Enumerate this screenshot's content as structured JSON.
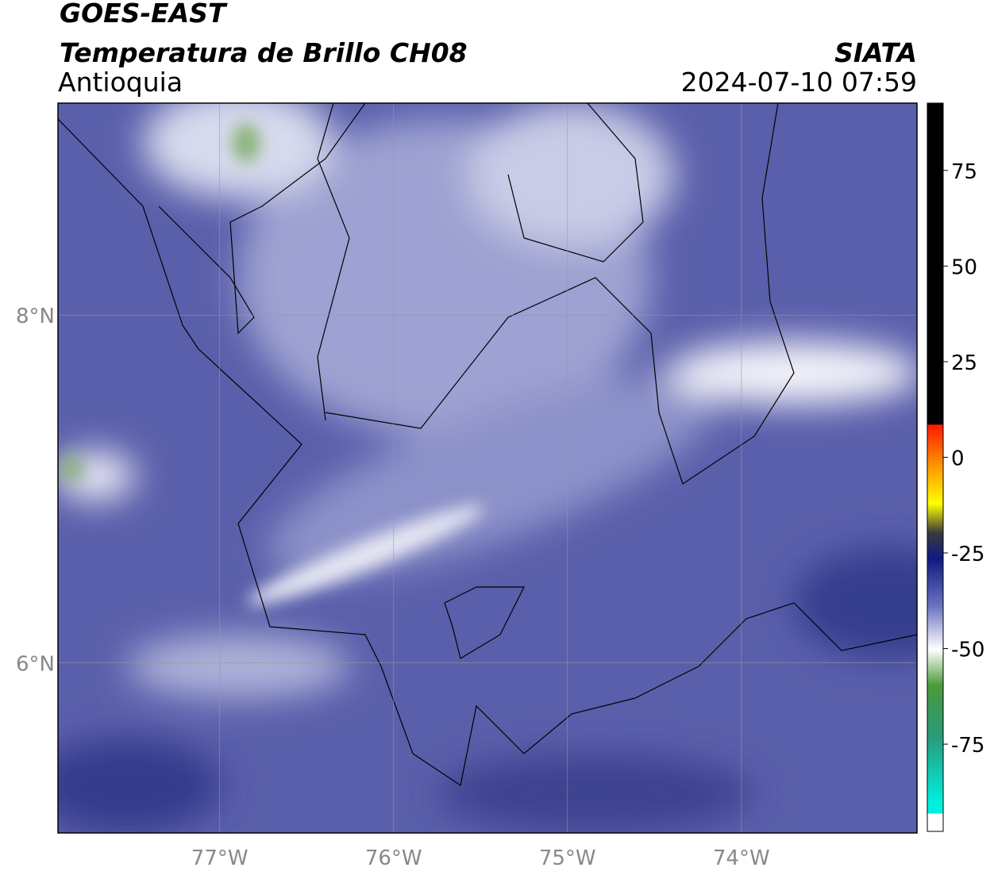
{
  "header": {
    "satellite": "GOES-EAST",
    "product": "Temperatura de Brillo CH08",
    "region": "Antioquia",
    "source": "SIATA",
    "datetime": "2024-07-10 07:59"
  },
  "map": {
    "xlim": [
      -77.93,
      -72.99
    ],
    "ylim": [
      5.02,
      9.22
    ],
    "xticks": [
      {
        "value": -77,
        "label": "77°W"
      },
      {
        "value": -76,
        "label": "76°W"
      },
      {
        "value": -75,
        "label": "75°W"
      },
      {
        "value": -74,
        "label": "74°W"
      }
    ],
    "yticks": [
      {
        "value": 6,
        "label": "6°N"
      },
      {
        "value": 8,
        "label": "8°N"
      }
    ],
    "grid": true
  },
  "colorbar": {
    "lim": [
      -97.8,
      92.6
    ],
    "ticks": [
      -75,
      -50,
      -25,
      0,
      25,
      50,
      75
    ]
  }
}
